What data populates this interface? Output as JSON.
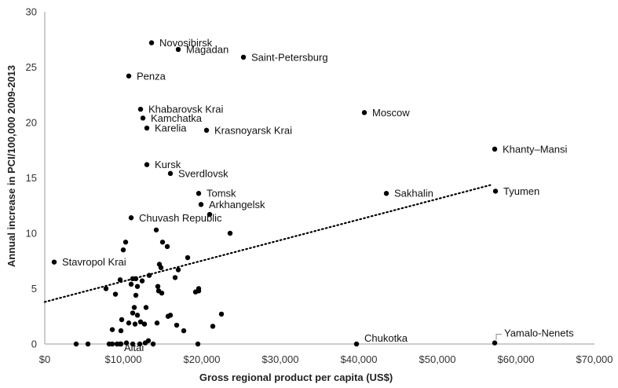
{
  "chart_data": {
    "type": "scatter",
    "xlabel": "Gross regional product per capita (US$)",
    "ylabel": "Annual increase in PCI/100,000 2009-2013",
    "xlim": [
      0,
      70000
    ],
    "ylim": [
      0,
      30
    ],
    "x_ticks": [
      {
        "value": 0,
        "label": "$0"
      },
      {
        "value": 10000,
        "label": "$10,000"
      },
      {
        "value": 20000,
        "label": "$20,000"
      },
      {
        "value": 30000,
        "label": "$30,000"
      },
      {
        "value": 40000,
        "label": "$40,000"
      },
      {
        "value": 50000,
        "label": "$50,000"
      },
      {
        "value": 60000,
        "label": "$60,000"
      },
      {
        "value": 70000,
        "label": "$70,000"
      }
    ],
    "y_ticks": [
      {
        "value": 0,
        "label": "0"
      },
      {
        "value": 5,
        "label": "5"
      },
      {
        "value": 10,
        "label": "10"
      },
      {
        "value": 15,
        "label": "15"
      },
      {
        "value": 20,
        "label": "20"
      },
      {
        "value": 25,
        "label": "25"
      },
      {
        "value": 30,
        "label": "30"
      }
    ],
    "grid": false,
    "trendline": {
      "style": "dotted",
      "x": [
        0,
        57000
      ],
      "y": [
        3.8,
        14.4
      ]
    },
    "marker_color": "#000000",
    "labeled_points": [
      {
        "name": "Novosibirsk",
        "x": 13600,
        "y": 27.2
      },
      {
        "name": "Magadan",
        "x": 17000,
        "y": 26.6
      },
      {
        "name": "Saint-Petersburg",
        "x": 25300,
        "y": 25.9
      },
      {
        "name": "Penza",
        "x": 10700,
        "y": 24.2
      },
      {
        "name": "Khabarovsk Krai",
        "x": 12200,
        "y": 21.2
      },
      {
        "name": "Kamchatka",
        "x": 12500,
        "y": 20.4
      },
      {
        "name": "Karelia",
        "x": 13000,
        "y": 19.5
      },
      {
        "name": "Krasnoyarsk Krai",
        "x": 20600,
        "y": 19.3
      },
      {
        "name": "Moscow",
        "x": 40700,
        "y": 20.9
      },
      {
        "name": "Khanty–Mansi",
        "x": 57300,
        "y": 17.6
      },
      {
        "name": "Kursk",
        "x": 13000,
        "y": 16.2
      },
      {
        "name": "Sverdlovsk",
        "x": 16000,
        "y": 15.4
      },
      {
        "name": "Tomsk",
        "x": 19600,
        "y": 13.6
      },
      {
        "name": "Sakhalin",
        "x": 43500,
        "y": 13.6
      },
      {
        "name": "Tyumen",
        "x": 57400,
        "y": 13.8
      },
      {
        "name": "Arkhangelsk",
        "x": 19900,
        "y": 12.6
      },
      {
        "name": "Chuvash Republic",
        "x": 11000,
        "y": 11.4
      },
      {
        "name": "Stavropol Krai",
        "x": 1200,
        "y": 7.4
      },
      {
        "name": "Chukotka",
        "x": 39700,
        "y": 0.0
      },
      {
        "name": "Altai",
        "x": 9600,
        "y": 0.0
      },
      {
        "name": "Yamalo-Nenets",
        "x": 57300,
        "y": 0.1
      }
    ],
    "unlabeled_points": [
      {
        "x": 21000,
        "y": 11.7
      },
      {
        "x": 23600,
        "y": 10.0
      },
      {
        "x": 14200,
        "y": 10.3
      },
      {
        "x": 10300,
        "y": 9.2
      },
      {
        "x": 10000,
        "y": 8.5
      },
      {
        "x": 15000,
        "y": 9.2
      },
      {
        "x": 15600,
        "y": 8.8
      },
      {
        "x": 18200,
        "y": 7.8
      },
      {
        "x": 14600,
        "y": 7.2
      },
      {
        "x": 14800,
        "y": 6.9
      },
      {
        "x": 17000,
        "y": 6.7
      },
      {
        "x": 13300,
        "y": 6.2
      },
      {
        "x": 16600,
        "y": 6.0
      },
      {
        "x": 9600,
        "y": 5.8
      },
      {
        "x": 11200,
        "y": 5.9
      },
      {
        "x": 11600,
        "y": 5.9
      },
      {
        "x": 12400,
        "y": 5.7
      },
      {
        "x": 11000,
        "y": 5.4
      },
      {
        "x": 11800,
        "y": 5.2
      },
      {
        "x": 14400,
        "y": 5.2
      },
      {
        "x": 7800,
        "y": 5.0
      },
      {
        "x": 14500,
        "y": 4.8
      },
      {
        "x": 14900,
        "y": 4.6
      },
      {
        "x": 19200,
        "y": 4.7
      },
      {
        "x": 19600,
        "y": 4.8
      },
      {
        "x": 19600,
        "y": 5.0
      },
      {
        "x": 9000,
        "y": 4.5
      },
      {
        "x": 11600,
        "y": 4.4
      },
      {
        "x": 12900,
        "y": 3.3
      },
      {
        "x": 11400,
        "y": 3.3
      },
      {
        "x": 11200,
        "y": 2.8
      },
      {
        "x": 11800,
        "y": 2.6
      },
      {
        "x": 15700,
        "y": 2.5
      },
      {
        "x": 16000,
        "y": 2.6
      },
      {
        "x": 22500,
        "y": 2.7
      },
      {
        "x": 9800,
        "y": 2.2
      },
      {
        "x": 10700,
        "y": 1.9
      },
      {
        "x": 11500,
        "y": 1.8
      },
      {
        "x": 12200,
        "y": 2.0
      },
      {
        "x": 12700,
        "y": 1.8
      },
      {
        "x": 14300,
        "y": 1.9
      },
      {
        "x": 16800,
        "y": 1.7
      },
      {
        "x": 21400,
        "y": 1.6
      },
      {
        "x": 8600,
        "y": 1.3
      },
      {
        "x": 9700,
        "y": 1.2
      },
      {
        "x": 17700,
        "y": 1.2
      },
      {
        "x": 4000,
        "y": 0.0
      },
      {
        "x": 5500,
        "y": 0.0
      },
      {
        "x": 8200,
        "y": 0.0
      },
      {
        "x": 8600,
        "y": 0.0
      },
      {
        "x": 9200,
        "y": 0.0
      },
      {
        "x": 9700,
        "y": 0.0
      },
      {
        "x": 10400,
        "y": 0.1
      },
      {
        "x": 11200,
        "y": 0.0
      },
      {
        "x": 12100,
        "y": 0.0
      },
      {
        "x": 12800,
        "y": 0.1
      },
      {
        "x": 13200,
        "y": 0.3
      },
      {
        "x": 13800,
        "y": 0.0
      },
      {
        "x": 19500,
        "y": 0.0
      }
    ]
  }
}
